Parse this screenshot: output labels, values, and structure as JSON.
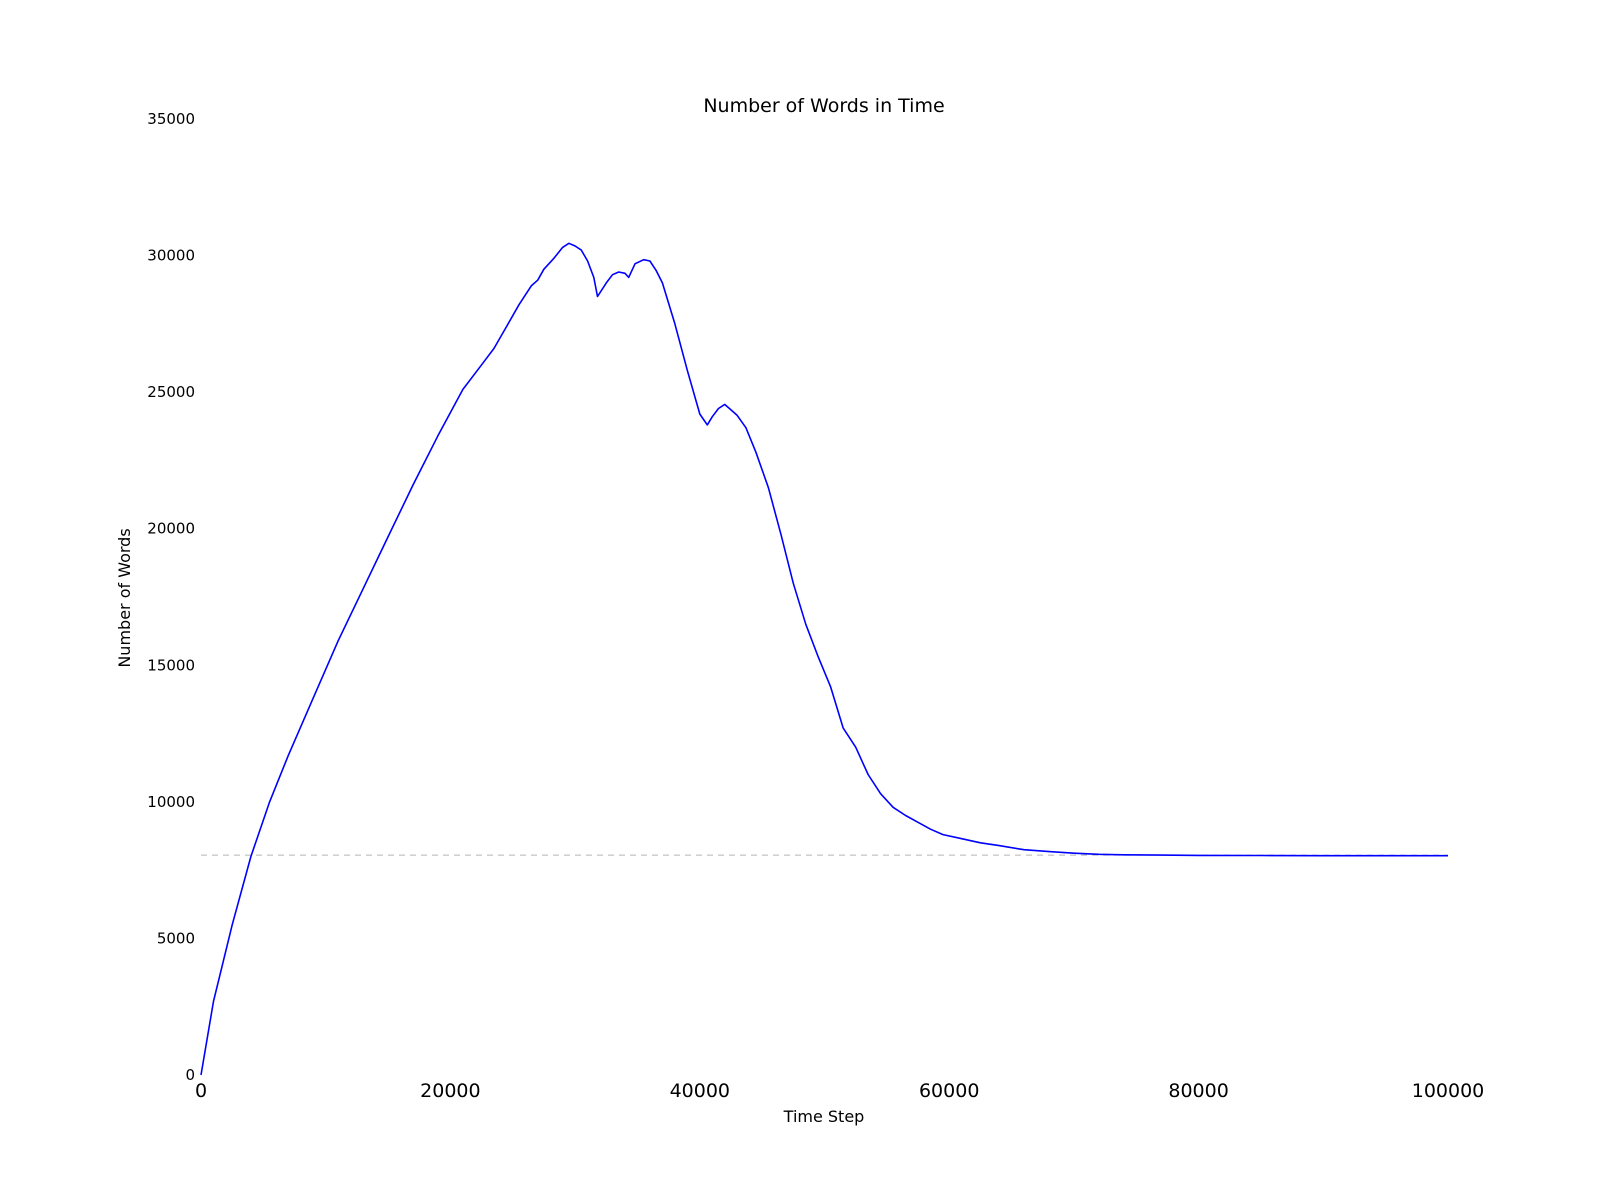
{
  "chart_data": {
    "type": "line",
    "title": "Number of Words in Time",
    "xlabel": "Time Step",
    "ylabel": "Number of Words",
    "xlim": [
      0,
      100000
    ],
    "ylim": [
      0,
      35000
    ],
    "xticks": [
      "0",
      "20000",
      "40000",
      "60000",
      "80000",
      "100000"
    ],
    "yticks": [
      "0",
      "5000",
      "10000",
      "15000",
      "20000",
      "25000",
      "30000",
      "35000"
    ],
    "grid": false,
    "colors": {
      "series": "#0000ff",
      "reference": "#b5b5b5"
    },
    "reference_line": {
      "y": 8050,
      "style": "dashed"
    },
    "series": [
      {
        "x": [
          0,
          1000,
          2500,
          4000,
          5500,
          7000,
          9000,
          11000,
          13000,
          15000,
          17000,
          19000,
          21000,
          22500,
          23500,
          24500,
          25500,
          26500,
          27000,
          27500,
          28300,
          29000,
          29500,
          30000,
          30500,
          31000,
          31500,
          31800,
          32500,
          33000,
          33500,
          34000,
          34300,
          34800,
          35500,
          36000,
          36500,
          37000,
          38000,
          39000,
          40000,
          40600,
          41000,
          41500,
          42000,
          42500,
          43000,
          43700,
          44500,
          45500,
          46500,
          47500,
          48500,
          49500,
          50500,
          51500,
          52500,
          53500,
          54500,
          55500,
          56500,
          57500,
          58500,
          59500,
          61000,
          62500,
          64000,
          66000,
          68000,
          70000,
          72000,
          74000,
          77000,
          80000,
          85000,
          90000,
          95000,
          100000
        ],
        "values": [
          0,
          2700,
          5500,
          8000,
          10000,
          11700,
          13800,
          15900,
          17800,
          19700,
          21600,
          23400,
          25100,
          26000,
          26600,
          27400,
          28200,
          28900,
          29100,
          29500,
          29900,
          30300,
          30450,
          30350,
          30200,
          29800,
          29200,
          28500,
          29000,
          29300,
          29400,
          29350,
          29200,
          29700,
          29850,
          29800,
          29450,
          29000,
          27500,
          25800,
          24200,
          23800,
          24100,
          24400,
          24550,
          24350,
          24150,
          23700,
          22800,
          21500,
          19800,
          18000,
          16500,
          15300,
          14200,
          12700,
          12000,
          11000,
          10300,
          9800,
          9500,
          9250,
          9000,
          8800,
          8650,
          8500,
          8400,
          8250,
          8180,
          8120,
          8080,
          8060,
          8050,
          8040,
          8035,
          8030,
          8030,
          8030
        ]
      }
    ]
  }
}
